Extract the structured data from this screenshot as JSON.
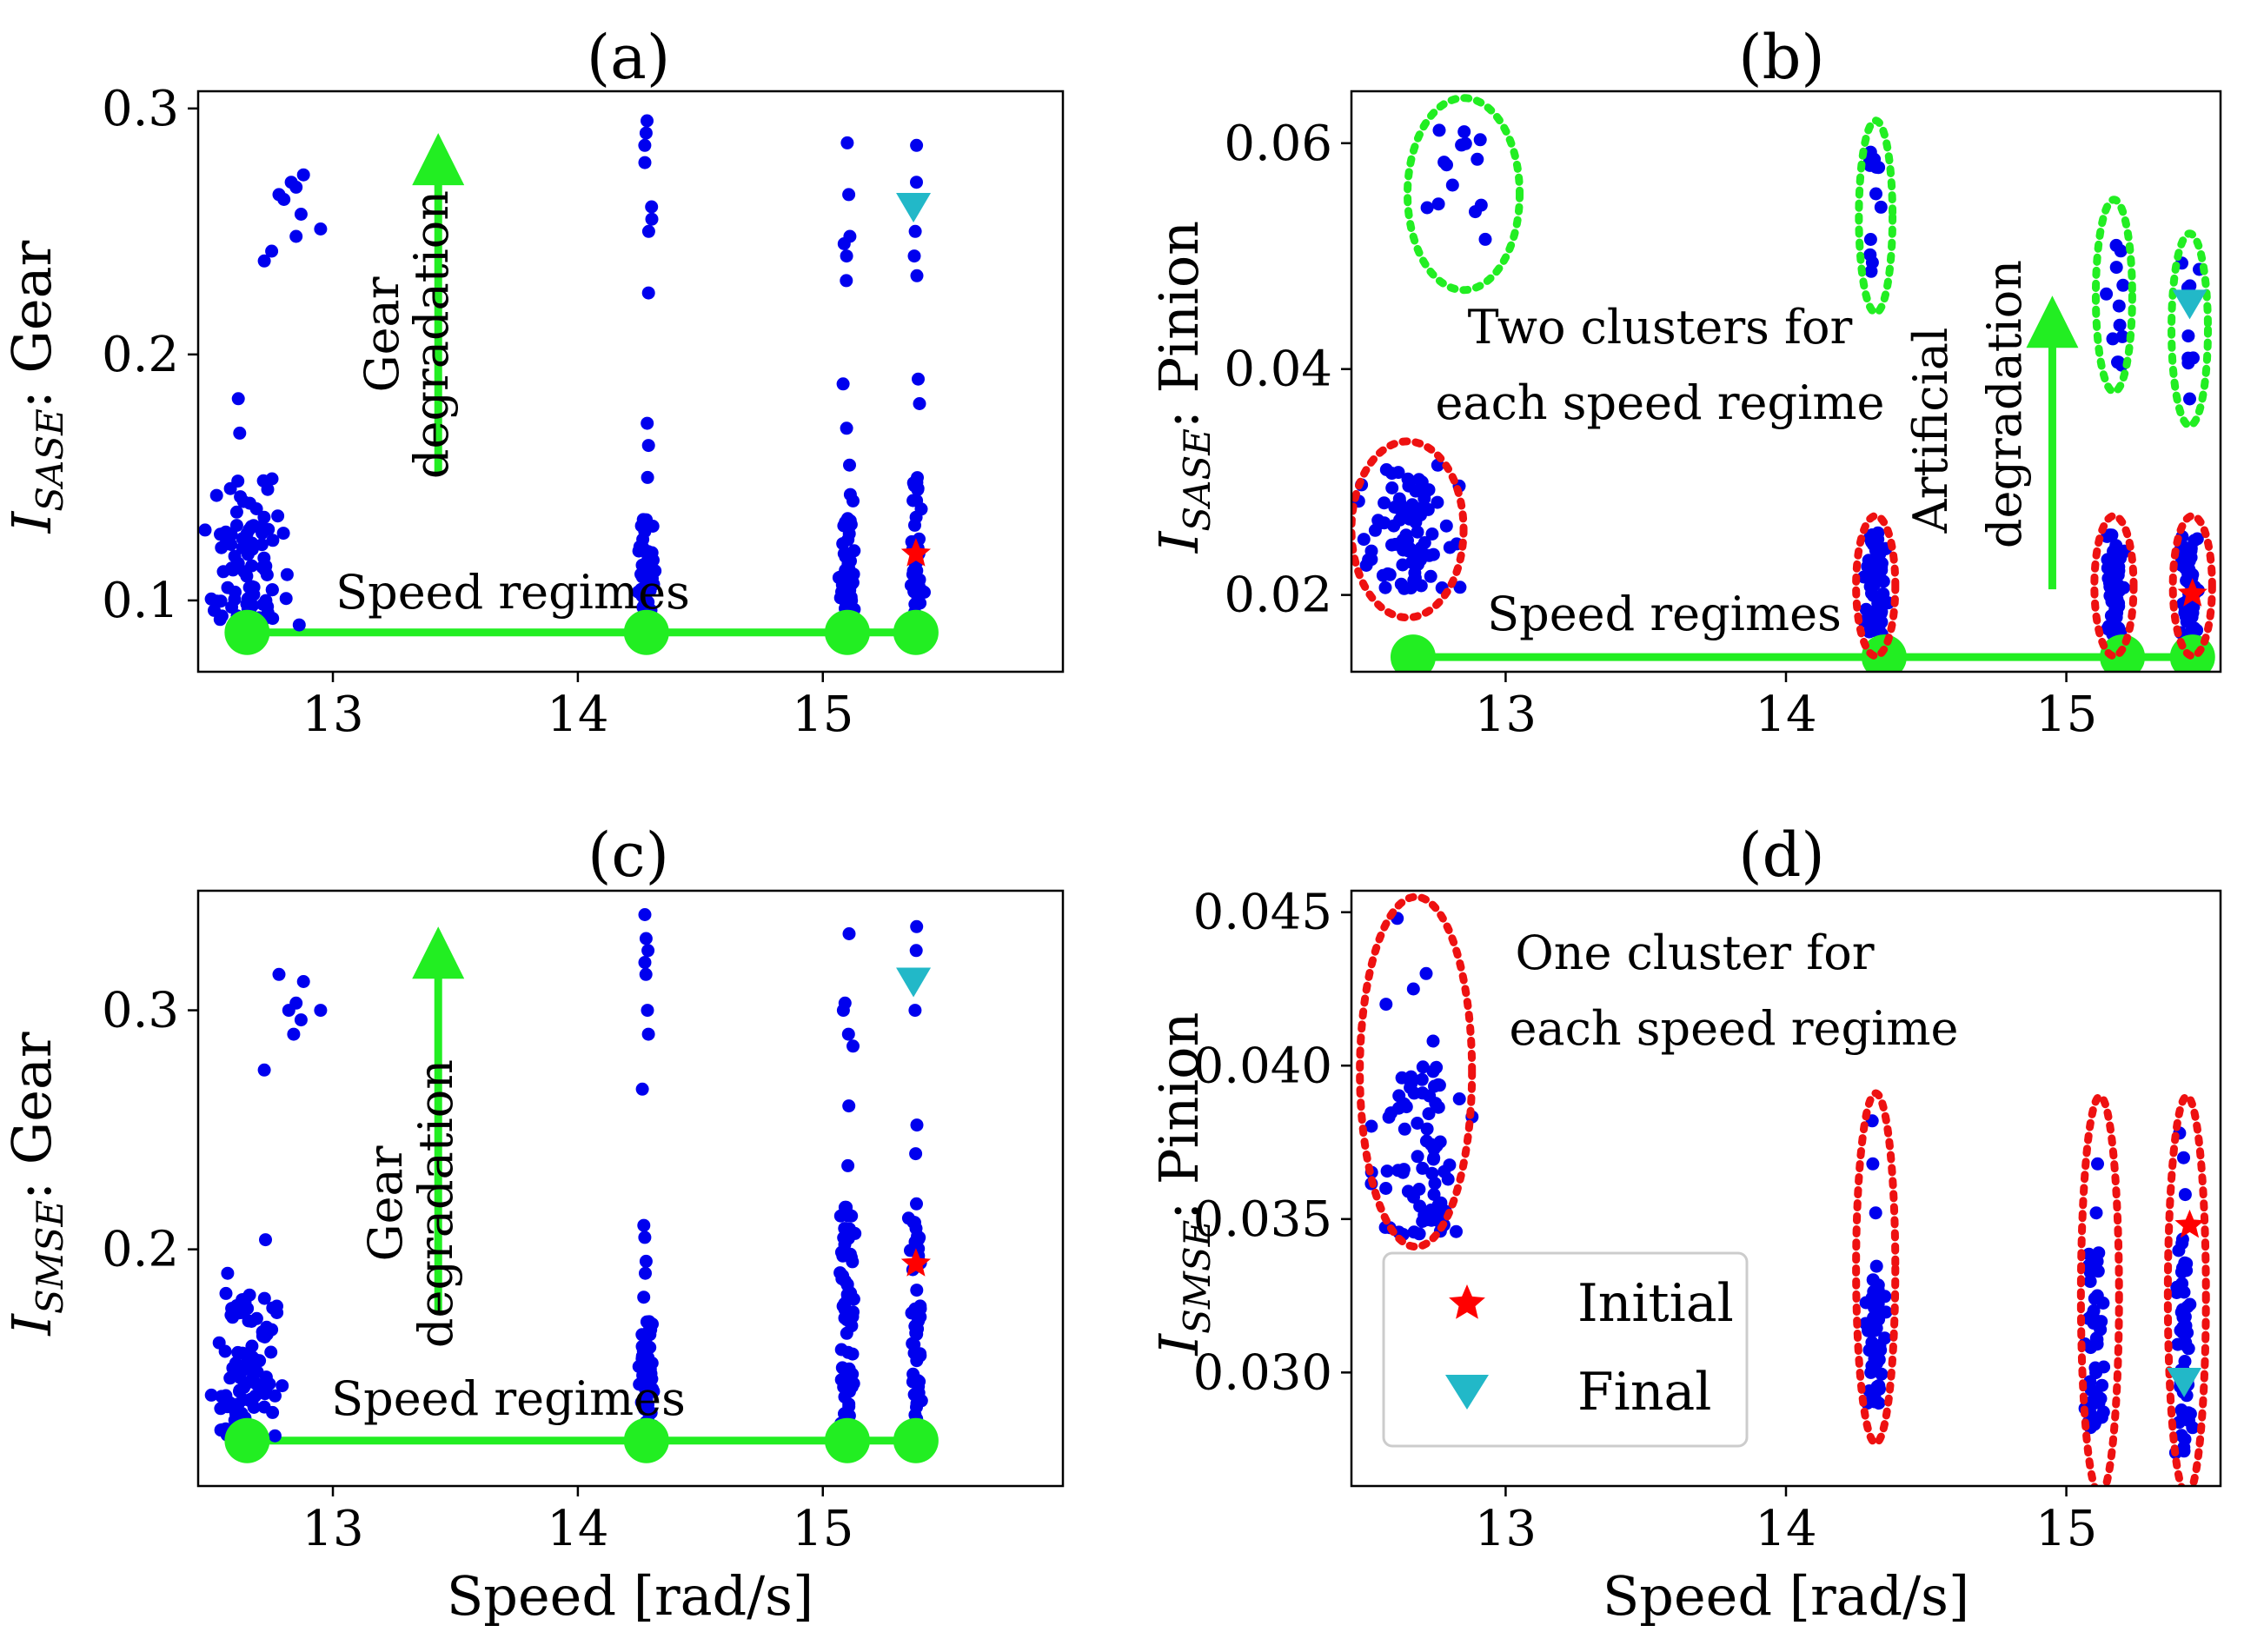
{
  "figure": {
    "xlabel": "Speed [rad/s]",
    "x_ticks": [
      13,
      14,
      15
    ],
    "point_color": "#0000ee",
    "marker_green": "#22ee22",
    "ellipse_red": "#ee1111",
    "ellipse_green": "#22ee22",
    "initial_color": "#ff0000",
    "final_color": "#22b8c8"
  },
  "legend": {
    "initial": "Initial",
    "final": "Final"
  },
  "chart_data": [
    {
      "type": "scatter",
      "title": "(a)",
      "ylabel_main": "I",
      "ylabel_sub": "SASE",
      "ylabel_rest": ": Gear",
      "xlim": [
        12.45,
        15.98
      ],
      "ylim": [
        0.071,
        0.307
      ],
      "y_ticks": [
        0.1,
        0.2,
        0.3
      ],
      "y_tick_labels": [
        "0.1",
        "0.2",
        "0.3"
      ],
      "speed_regimes": [
        12.65,
        14.28,
        15.1,
        15.38
      ],
      "regime_line_y": 0.087,
      "annotations": {
        "speed_label": "Speed regimes",
        "arrow_label_1": "Gear",
        "arrow_label_2": "degradation"
      },
      "arrow": {
        "x": 13.43,
        "y_from": 0.152,
        "y_to": 0.29
      },
      "initial": {
        "x": 15.38,
        "y": 0.119
      },
      "final": {
        "x": 15.37,
        "y": 0.26
      },
      "clusters": [
        {
          "x_center": 12.65,
          "x_spread": 0.13,
          "y_min": 0.088,
          "y_max": 0.15,
          "n": 95,
          "extras": [
            0.168,
            0.182
          ]
        },
        {
          "x_center": 14.28,
          "x_spread": 0.025,
          "y_min": 0.088,
          "y_max": 0.135,
          "n": 48,
          "extras": [
            0.15,
            0.163,
            0.172,
            0.225,
            0.25,
            0.255,
            0.26,
            0.278,
            0.285,
            0.29,
            0.295
          ]
        },
        {
          "x_center": 15.1,
          "x_spread": 0.025,
          "y_min": 0.088,
          "y_max": 0.145,
          "n": 55,
          "extras": [
            0.155,
            0.17,
            0.188,
            0.23,
            0.24,
            0.245,
            0.248,
            0.265,
            0.286
          ]
        },
        {
          "x_center": 15.38,
          "x_spread": 0.02,
          "y_min": 0.088,
          "y_max": 0.15,
          "n": 48,
          "extras": [
            0.18,
            0.19,
            0.232,
            0.24,
            0.25,
            0.27,
            0.285
          ]
        }
      ],
      "outliers": [
        {
          "x": 12.72,
          "y": 0.238
        },
        {
          "x": 12.75,
          "y": 0.242
        },
        {
          "x": 12.8,
          "y": 0.263
        },
        {
          "x": 12.83,
          "y": 0.27
        },
        {
          "x": 12.85,
          "y": 0.268
        },
        {
          "x": 12.87,
          "y": 0.257
        },
        {
          "x": 12.88,
          "y": 0.273
        },
        {
          "x": 12.85,
          "y": 0.248
        },
        {
          "x": 12.78,
          "y": 0.265
        },
        {
          "x": 12.95,
          "y": 0.251
        }
      ]
    },
    {
      "type": "scatter",
      "title": "(b)",
      "ylabel_main": "I",
      "ylabel_sub": "SASE",
      "ylabel_rest": ": Pinion",
      "xlim": [
        12.45,
        15.55
      ],
      "ylim": [
        0.0132,
        0.0646
      ],
      "y_ticks": [
        0.02,
        0.04,
        0.06
      ],
      "y_tick_labels": [
        "0.02",
        "0.04",
        "0.06"
      ],
      "speed_regimes": [
        12.67,
        14.35,
        15.2,
        15.45
      ],
      "regime_line_y": 0.0145,
      "annotations": {
        "cluster_label_1": "Two clusters for",
        "cluster_label_2": "each speed regime",
        "speed_label": "Speed regimes",
        "arrow_label_1": "Artificial",
        "arrow_label_2": "degradation"
      },
      "arrow": {
        "x": 14.95,
        "y_from": 0.0205,
        "y_to": 0.0465
      },
      "initial": {
        "x": 15.45,
        "y": 0.0201
      },
      "final": {
        "x": 15.44,
        "y": 0.0458
      },
      "clusters": [
        {
          "x_center": 12.65,
          "x_spread": 0.12,
          "y_min": 0.0205,
          "y_max": 0.0315,
          "n": 85,
          "extras": []
        },
        {
          "x_center": 14.32,
          "x_spread": 0.03,
          "y_min": 0.0165,
          "y_max": 0.0255,
          "n": 65,
          "extras": []
        },
        {
          "x_center": 15.17,
          "x_spread": 0.025,
          "y_min": 0.0165,
          "y_max": 0.0255,
          "n": 65,
          "extras": []
        },
        {
          "x_center": 15.44,
          "x_spread": 0.025,
          "y_min": 0.0165,
          "y_max": 0.0255,
          "n": 55,
          "extras": []
        },
        {
          "x_center": 12.82,
          "x_spread": 0.1,
          "y_min": 0.05,
          "y_max": 0.062,
          "n": 14,
          "extras": []
        },
        {
          "x_center": 14.32,
          "x_spread": 0.02,
          "y_min": 0.047,
          "y_max": 0.06,
          "n": 12,
          "extras": []
        },
        {
          "x_center": 15.18,
          "x_spread": 0.03,
          "y_min": 0.04,
          "y_max": 0.052,
          "n": 12,
          "extras": []
        },
        {
          "x_center": 15.44,
          "x_spread": 0.025,
          "y_min": 0.037,
          "y_max": 0.05,
          "n": 10,
          "extras": []
        }
      ],
      "ellipses": [
        {
          "cx": 12.65,
          "cy": 0.0258,
          "rx": 0.2,
          "ry": 0.0078,
          "color": "red"
        },
        {
          "cx": 14.32,
          "cy": 0.0208,
          "rx": 0.07,
          "ry": 0.0062,
          "color": "red"
        },
        {
          "cx": 15.17,
          "cy": 0.0208,
          "rx": 0.07,
          "ry": 0.0062,
          "color": "red"
        },
        {
          "cx": 15.45,
          "cy": 0.0208,
          "rx": 0.07,
          "ry": 0.0062,
          "color": "red"
        },
        {
          "cx": 12.85,
          "cy": 0.0555,
          "rx": 0.2,
          "ry": 0.0085,
          "color": "green"
        },
        {
          "cx": 14.32,
          "cy": 0.0535,
          "rx": 0.06,
          "ry": 0.0085,
          "color": "green"
        },
        {
          "cx": 15.17,
          "cy": 0.0465,
          "rx": 0.065,
          "ry": 0.0085,
          "color": "green"
        },
        {
          "cx": 15.44,
          "cy": 0.0435,
          "rx": 0.065,
          "ry": 0.0085,
          "color": "green"
        }
      ]
    },
    {
      "type": "scatter",
      "title": "(c)",
      "ylabel_main": "I",
      "ylabel_sub": "SMSE",
      "ylabel_rest": ": Gear",
      "xlim": [
        12.45,
        15.98
      ],
      "ylim": [
        0.101,
        0.35
      ],
      "y_ticks": [
        0.2,
        0.3
      ],
      "y_tick_labels": [
        "0.2",
        "0.3"
      ],
      "speed_regimes": [
        12.65,
        14.28,
        15.1,
        15.38
      ],
      "regime_line_y": 0.12,
      "annotations": {
        "speed_label": "Speed regimes",
        "arrow_label_1": "Gear",
        "arrow_label_2": "degradation"
      },
      "arrow": {
        "x": 13.43,
        "y_from": 0.174,
        "y_to": 0.335
      },
      "initial": {
        "x": 15.38,
        "y": 0.194
      },
      "final": {
        "x": 15.37,
        "y": 0.312
      },
      "clusters": [
        {
          "x_center": 12.65,
          "x_spread": 0.13,
          "y_min": 0.122,
          "y_max": 0.182,
          "n": 90,
          "extras": [
            0.19,
            0.204
          ]
        },
        {
          "x_center": 14.28,
          "x_spread": 0.025,
          "y_min": 0.122,
          "y_max": 0.17,
          "n": 50,
          "extras": [
            0.18,
            0.19,
            0.195,
            0.205,
            0.21,
            0.267,
            0.29,
            0.3,
            0.315,
            0.32,
            0.325,
            0.33,
            0.34
          ]
        },
        {
          "x_center": 15.1,
          "x_spread": 0.025,
          "y_min": 0.122,
          "y_max": 0.22,
          "n": 70,
          "extras": [
            0.235,
            0.26,
            0.285,
            0.29,
            0.3,
            0.303,
            0.332
          ]
        },
        {
          "x_center": 15.38,
          "x_spread": 0.02,
          "y_min": 0.122,
          "y_max": 0.22,
          "n": 60,
          "extras": [
            0.24,
            0.252,
            0.3,
            0.325,
            0.335
          ]
        }
      ],
      "outliers": [
        {
          "x": 12.72,
          "y": 0.275
        },
        {
          "x": 12.78,
          "y": 0.315
        },
        {
          "x": 12.82,
          "y": 0.3
        },
        {
          "x": 12.85,
          "y": 0.303
        },
        {
          "x": 12.87,
          "y": 0.296
        },
        {
          "x": 12.88,
          "y": 0.312
        },
        {
          "x": 12.84,
          "y": 0.29
        },
        {
          "x": 12.95,
          "y": 0.3
        }
      ]
    },
    {
      "type": "scatter",
      "title": "(d)",
      "ylabel_main": "I",
      "ylabel_sub": "SMSE",
      "ylabel_rest": ": Pinion",
      "xlim": [
        12.45,
        15.55
      ],
      "ylim": [
        0.0263,
        0.0457
      ],
      "y_ticks": [
        0.03,
        0.035,
        0.04,
        0.045
      ],
      "y_tick_labels": [
        "0.030",
        "0.035",
        "0.040",
        "0.045"
      ],
      "annotations": {
        "cluster_label_1": "One cluster for",
        "cluster_label_2": "each speed regime"
      },
      "initial": {
        "x": 15.44,
        "y": 0.0348
      },
      "final": {
        "x": 15.42,
        "y": 0.0297
      },
      "clusters": [
        {
          "x_center": 12.68,
          "x_spread": 0.13,
          "y_min": 0.0345,
          "y_max": 0.04,
          "n": 75,
          "extras": [
            0.0408,
            0.042,
            0.0425,
            0.043,
            0.0448
          ]
        },
        {
          "x_center": 14.32,
          "x_spread": 0.025,
          "y_min": 0.029,
          "y_max": 0.0335,
          "n": 55,
          "extras": [
            0.0352,
            0.0368,
            0.0382
          ]
        },
        {
          "x_center": 15.1,
          "x_spread": 0.025,
          "y_min": 0.0282,
          "y_max": 0.034,
          "n": 55,
          "extras": [
            0.0352,
            0.0368
          ]
        },
        {
          "x_center": 15.42,
          "x_spread": 0.022,
          "y_min": 0.0272,
          "y_max": 0.0345,
          "n": 55,
          "extras": [
            0.0358,
            0.037,
            0.0378
          ]
        }
      ],
      "ellipses": [
        {
          "cx": 12.68,
          "cy": 0.0398,
          "rx": 0.2,
          "ry": 0.0057,
          "color": "red"
        },
        {
          "cx": 14.32,
          "cy": 0.0334,
          "rx": 0.07,
          "ry": 0.0057,
          "color": "red"
        },
        {
          "cx": 15.12,
          "cy": 0.0325,
          "rx": 0.068,
          "ry": 0.0065,
          "color": "red"
        },
        {
          "cx": 15.43,
          "cy": 0.0325,
          "rx": 0.068,
          "ry": 0.0065,
          "color": "red"
        }
      ]
    }
  ]
}
